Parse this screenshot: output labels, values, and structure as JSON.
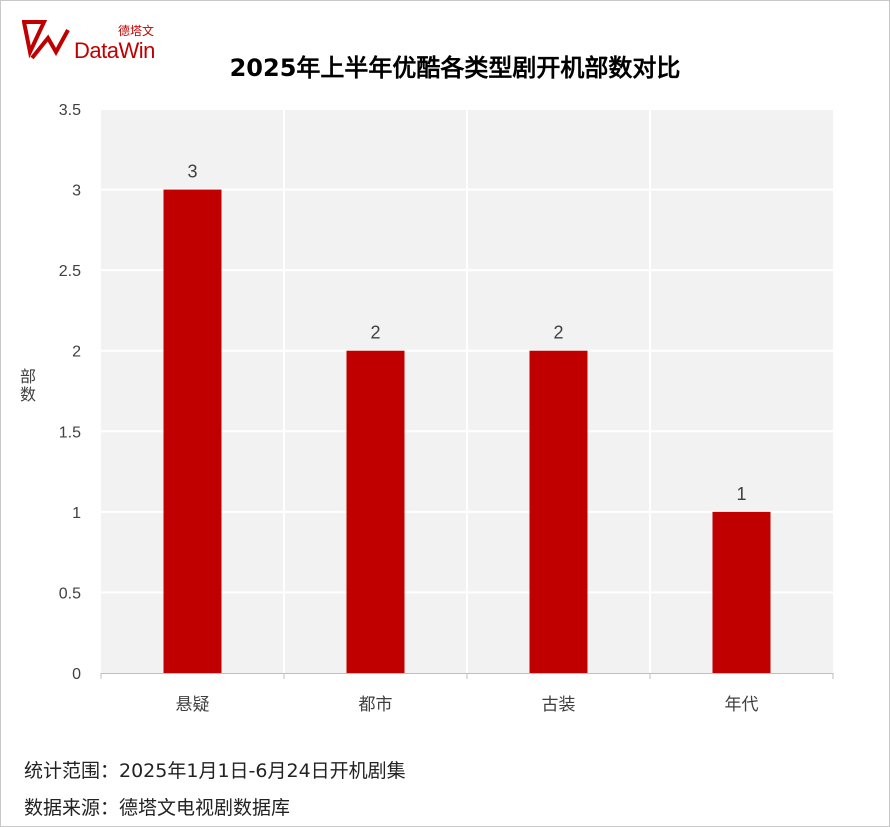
{
  "logo": {
    "cn": "德塔文",
    "en": "DataWin"
  },
  "chart_data": {
    "type": "bar",
    "title": "2025年上半年优酷各类型剧开机部数对比",
    "categories": [
      "悬疑",
      "都市",
      "古装",
      "年代"
    ],
    "values": [
      3,
      2,
      2,
      1
    ],
    "ylabel": "部数",
    "ylim": [
      0,
      3.5
    ],
    "yticks": [
      "0",
      "0.5",
      "1",
      "1.5",
      "2",
      "2.5",
      "3",
      "3.5"
    ],
    "grid": true,
    "bar_color": "#c00000"
  },
  "footer": {
    "line1": "统计范围：2025年1月1日-6月24日开机剧集",
    "line2": "数据来源：德塔文电视剧数据库"
  }
}
